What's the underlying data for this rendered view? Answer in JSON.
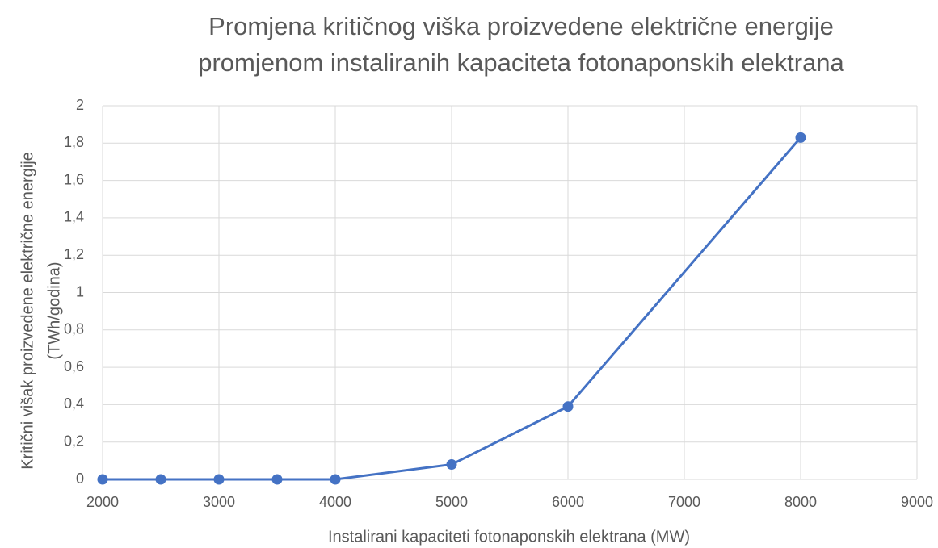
{
  "chart_data": {
    "type": "line",
    "title": [
      "Promjena kritičnog viška proizvedene električne energije",
      "promjenom instaliranih kapaciteta fotonaponskih elektrana"
    ],
    "x_label": "Instalirani kapaciteti fotonaponskih elektrana (MW)",
    "y_label": [
      "Kritični višak proizvedene električne energije",
      "(TWh/godina)"
    ],
    "x": [
      2000,
      2500,
      3000,
      3500,
      4000,
      5000,
      6000,
      8000
    ],
    "series": [
      {
        "color": "#4472c4",
        "values": [
          0,
          0,
          0,
          0,
          0,
          0.08,
          0.39,
          1.83
        ]
      }
    ],
    "xlim": [
      2000,
      9000
    ],
    "xticks": [
      2000,
      3000,
      4000,
      5000,
      6000,
      7000,
      8000,
      9000
    ],
    "ylim": [
      0,
      2
    ],
    "yticks": [
      0,
      {
        "value": 0.2,
        "label": "0,2"
      },
      {
        "value": 0.4,
        "label": "0,4"
      },
      {
        "value": 0.6,
        "label": "0,6"
      },
      {
        "value": 0.8,
        "label": "0,8"
      },
      1,
      {
        "value": 1.2,
        "label": "1,2"
      },
      {
        "value": 1.4,
        "label": "1,4"
      },
      {
        "value": 1.6,
        "label": "1,6"
      },
      {
        "value": 1.8,
        "label": "1,8"
      },
      2
    ],
    "grid": true,
    "markers": true
  }
}
